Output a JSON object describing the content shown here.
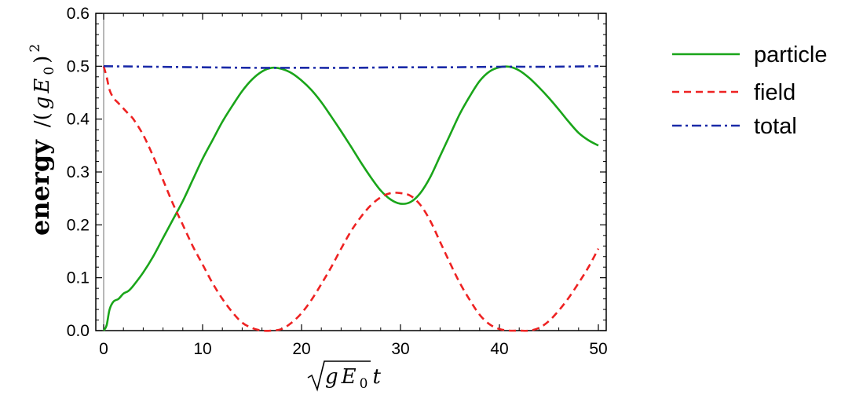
{
  "chart_data": {
    "type": "line",
    "title": "",
    "xlabel": "√(gE₀) t",
    "ylabel": "energy /(gE₀)²",
    "ylabel_parts": {
      "word": "energy",
      "slash": "/(",
      "g": "g",
      "E": "E",
      "sub": "0",
      "close": ")",
      "power": "2"
    },
    "xlabel_parts": {
      "g": "g",
      "E": "E",
      "sub": "0",
      "t": "t"
    },
    "xlim": [
      0,
      50
    ],
    "ylim": [
      0,
      0.6
    ],
    "xticks": [
      0,
      10,
      20,
      30,
      40,
      50
    ],
    "xtick_labels": [
      "0",
      "10",
      "20",
      "30",
      "40",
      "50"
    ],
    "yticks": [
      0,
      0.1,
      0.2,
      0.3,
      0.4,
      0.5,
      0.6
    ],
    "ytick_labels": [
      "0.0",
      "0.1",
      "0.2",
      "0.3",
      "0.4",
      "0.5",
      "0.6"
    ],
    "grid": false,
    "legend_position": "right",
    "series": [
      {
        "name": "particle",
        "color": "#1aa51a",
        "dash": "solid",
        "x": [
          0,
          0.3,
          0.6,
          1,
          1.5,
          2,
          2.5,
          3,
          4,
          5,
          6,
          7,
          8,
          9,
          10,
          11,
          12,
          13,
          14,
          15,
          16,
          17,
          18,
          19,
          20,
          21,
          22,
          23,
          24,
          25,
          26,
          27,
          28,
          29,
          30,
          31,
          32,
          33,
          34,
          35,
          36,
          37,
          38,
          39,
          40,
          41,
          42,
          43,
          44,
          45,
          46,
          47,
          48,
          49,
          50
        ],
        "values": [
          0.0,
          0.01,
          0.04,
          0.055,
          0.06,
          0.07,
          0.075,
          0.085,
          0.11,
          0.14,
          0.175,
          0.21,
          0.245,
          0.285,
          0.325,
          0.36,
          0.395,
          0.425,
          0.453,
          0.475,
          0.49,
          0.497,
          0.495,
          0.487,
          0.473,
          0.455,
          0.432,
          0.405,
          0.377,
          0.348,
          0.318,
          0.29,
          0.265,
          0.248,
          0.24,
          0.243,
          0.26,
          0.29,
          0.33,
          0.37,
          0.41,
          0.443,
          0.472,
          0.49,
          0.498,
          0.499,
          0.492,
          0.478,
          0.46,
          0.44,
          0.418,
          0.395,
          0.374,
          0.36,
          0.35
        ]
      },
      {
        "name": "field",
        "color": "#ee2222",
        "dash": "dashed",
        "x": [
          0,
          0.3,
          0.6,
          1,
          1.5,
          2,
          2.5,
          3,
          4,
          5,
          6,
          7,
          8,
          9,
          10,
          11,
          12,
          13,
          14,
          15,
          16,
          17,
          18,
          19,
          20,
          21,
          22,
          23,
          24,
          25,
          26,
          27,
          28,
          29,
          30,
          31,
          32,
          33,
          34,
          35,
          36,
          37,
          38,
          39,
          40,
          41,
          42,
          43,
          44,
          45,
          46,
          47,
          48,
          49,
          50
        ],
        "values": [
          0.5,
          0.48,
          0.455,
          0.44,
          0.43,
          0.42,
          0.41,
          0.4,
          0.37,
          0.33,
          0.285,
          0.24,
          0.2,
          0.16,
          0.125,
          0.09,
          0.06,
          0.035,
          0.015,
          0.005,
          0.0,
          0.0,
          0.003,
          0.015,
          0.033,
          0.058,
          0.088,
          0.12,
          0.155,
          0.188,
          0.215,
          0.237,
          0.252,
          0.26,
          0.26,
          0.255,
          0.238,
          0.208,
          0.168,
          0.128,
          0.09,
          0.058,
          0.03,
          0.012,
          0.003,
          0.0,
          0.0,
          0.0,
          0.005,
          0.018,
          0.038,
          0.062,
          0.09,
          0.12,
          0.155
        ]
      },
      {
        "name": "total",
        "color": "#1a2aa8",
        "dash": "dashdot",
        "x": [
          0,
          5,
          10,
          15,
          20,
          25,
          30,
          35,
          40,
          45,
          50
        ],
        "values": [
          0.5,
          0.499,
          0.498,
          0.497,
          0.497,
          0.497,
          0.498,
          0.498,
          0.499,
          0.499,
          0.5
        ]
      }
    ]
  }
}
